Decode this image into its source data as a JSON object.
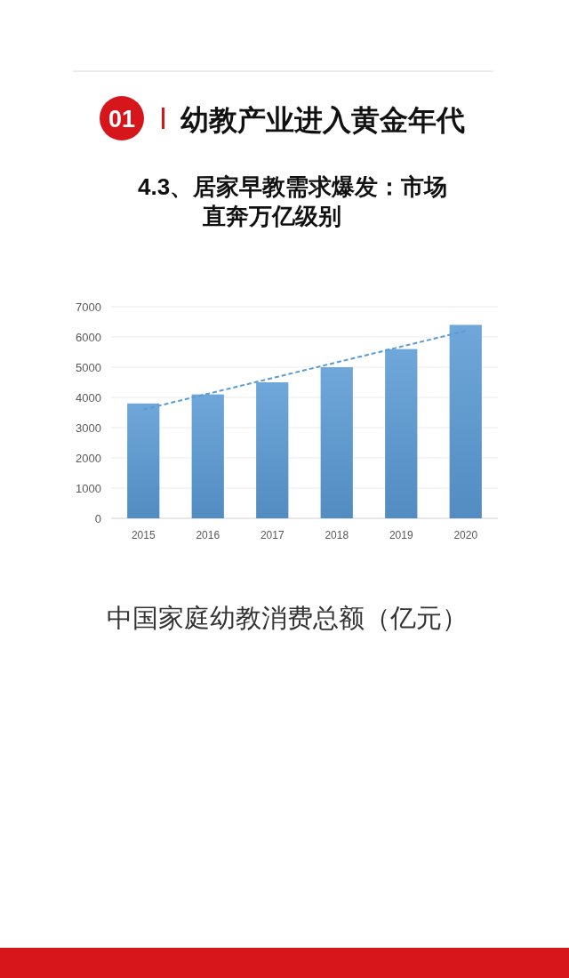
{
  "chart_data": {
    "type": "bar",
    "title": "幼教产业进入黄金年代",
    "subtitle": "4.3、居家早教需求爆发：市场直奔万亿级别",
    "annotations": [
      "01",
      "中国家庭幼教消费总额（亿元）"
    ],
    "categories": [
      "2015",
      "2016",
      "2017",
      "2018",
      "2019",
      "2020"
    ],
    "series": [
      {
        "color": "#5b9bd5",
        "values": [
          3800,
          4100,
          4500,
          5000,
          5600,
          6400
        ]
      },
      {
        "type": "line",
        "color": "#5b9bd5",
        "values": [
          3600,
          4120,
          4640,
          5160,
          5680,
          6200
        ]
      }
    ],
    "line_style": "dashed",
    "ylim": [
      0,
      7000
    ],
    "yticks": [
      0,
      1000,
      2000,
      3000,
      4000,
      5000,
      6000,
      7000
    ],
    "grid": "y"
  }
}
